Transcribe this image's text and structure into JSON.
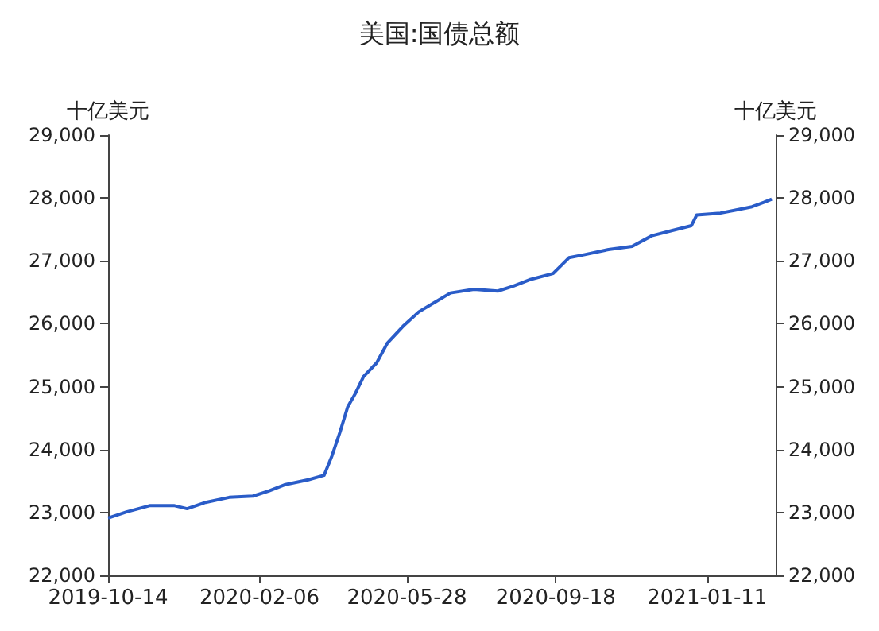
{
  "chart_data": {
    "type": "line",
    "title": "美国:国债总额",
    "ylabel": "十亿美元",
    "y2label": "十亿美元",
    "x": [
      "2019-10-14",
      "2019-10-28",
      "2019-11-15",
      "2019-12-03",
      "2019-12-13",
      "2019-12-27",
      "2020-01-14",
      "2020-02-01",
      "2020-02-13",
      "2020-02-25",
      "2020-03-14",
      "2020-03-26",
      "2020-04-01",
      "2020-04-07",
      "2020-04-13",
      "2020-04-19",
      "2020-04-25",
      "2020-05-05",
      "2020-05-13",
      "2020-05-25",
      "2020-06-06",
      "2020-06-18",
      "2020-06-30",
      "2020-07-18",
      "2020-08-05",
      "2020-08-17",
      "2020-08-29",
      "2020-09-16",
      "2020-09-28",
      "2020-10-10",
      "2020-10-28",
      "2020-11-15",
      "2020-11-30",
      "2020-12-15",
      "2020-12-30",
      "2021-01-03",
      "2021-01-21",
      "2021-02-02",
      "2021-02-14",
      "2021-02-23",
      "2021-03-01"
    ],
    "series": [
      {
        "color": "#2a5cc8",
        "values": [
          22910,
          23010,
          23110,
          23110,
          23060,
          23160,
          23240,
          23260,
          23340,
          23440,
          23520,
          23590,
          23900,
          24270,
          24680,
          24900,
          25160,
          25380,
          25690,
          25960,
          26190,
          26340,
          26490,
          26550,
          26520,
          26600,
          26700,
          26800,
          27050,
          27100,
          27180,
          27230,
          27400,
          27480,
          27560,
          27730,
          27760,
          27810,
          27860,
          27930,
          27980
        ]
      }
    ],
    "xlim": [
      "2019-10-14",
      "2021-03-04"
    ],
    "xticks": [
      {
        "value": "2019-10-14",
        "label": "2019-10-14"
      },
      {
        "value": "2020-02-06",
        "label": "2020-02-06"
      },
      {
        "value": "2020-05-28",
        "label": "2020-05-28"
      },
      {
        "value": "2020-09-18",
        "label": "2020-09-18"
      },
      {
        "value": "2021-01-11",
        "label": "2021-01-11"
      }
    ],
    "ylim": [
      22000,
      29000
    ],
    "yticks": [
      {
        "value": 22000,
        "label": "22,000"
      },
      {
        "value": 23000,
        "label": "23,000"
      },
      {
        "value": 24000,
        "label": "24,000"
      },
      {
        "value": 25000,
        "label": "25,000"
      },
      {
        "value": 26000,
        "label": "26,000"
      },
      {
        "value": 27000,
        "label": "27,000"
      },
      {
        "value": 28000,
        "label": "28,000"
      },
      {
        "value": 29000,
        "label": "29,000"
      }
    ],
    "y2lim": [
      22000,
      29000
    ],
    "y2ticks": [
      {
        "value": 22000,
        "label": "22,000"
      },
      {
        "value": 23000,
        "label": "23,000"
      },
      {
        "value": 24000,
        "label": "24,000"
      },
      {
        "value": 25000,
        "label": "25,000"
      },
      {
        "value": 26000,
        "label": "26,000"
      },
      {
        "value": 27000,
        "label": "27,000"
      },
      {
        "value": 28000,
        "label": "28,000"
      },
      {
        "value": 29000,
        "label": "29,000"
      }
    ],
    "grid": false,
    "marker": "none",
    "line_style": "solid"
  }
}
